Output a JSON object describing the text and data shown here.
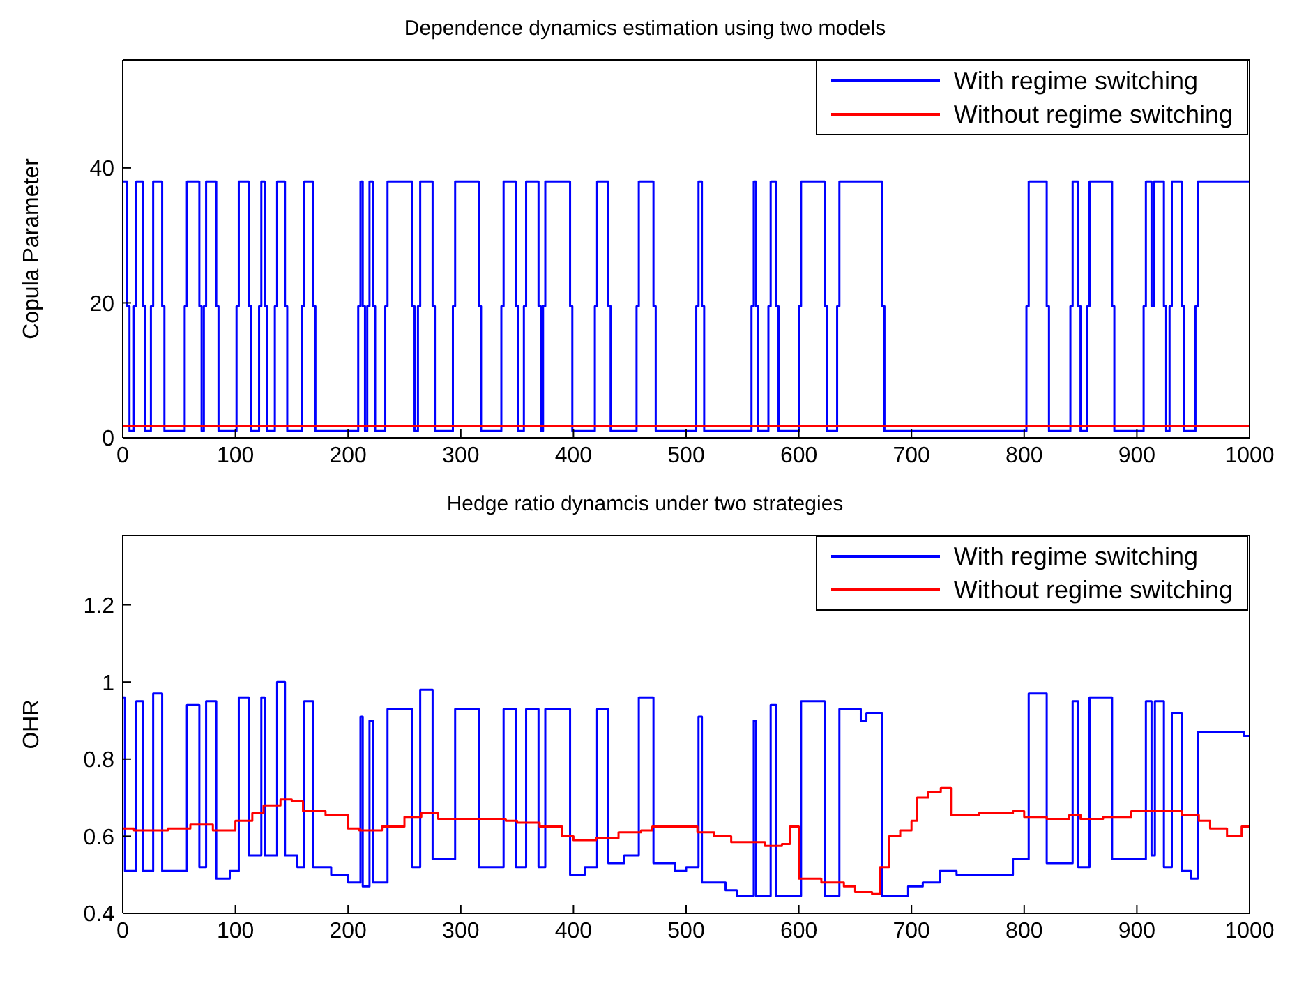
{
  "chart_data": [
    {
      "type": "step",
      "title": "Dependence dynamics estimation using two models",
      "ylabel": "Copula Parameter",
      "xlim": [
        0,
        1000
      ],
      "xticks": [
        0,
        100,
        200,
        300,
        400,
        500,
        600,
        700,
        800,
        900,
        1000
      ],
      "ylim": [
        0,
        56
      ],
      "yticks": [
        0,
        20,
        40
      ],
      "legend": "top right",
      "series": [
        {
          "name": "With regime switching",
          "color": "#0000ff",
          "x": [
            0,
            4,
            6,
            10,
            12,
            18,
            20,
            25,
            27,
            35,
            37,
            55,
            57,
            68,
            70,
            72,
            74,
            83,
            85,
            101,
            103,
            112,
            114,
            121,
            123,
            126,
            128,
            135,
            137,
            144,
            146,
            159,
            161,
            169,
            171,
            209,
            211,
            213,
            215,
            217,
            219,
            222,
            224,
            233,
            235,
            257,
            259,
            262,
            264,
            275,
            277,
            293,
            295,
            316,
            318,
            336,
            338,
            349,
            351,
            356,
            358,
            369,
            371,
            373,
            375,
            397,
            399,
            419,
            421,
            431,
            433,
            456,
            458,
            471,
            473,
            509,
            511,
            514,
            516,
            558,
            560,
            562,
            564,
            573,
            575,
            580,
            582,
            600,
            602,
            623,
            625,
            634,
            636,
            674,
            676,
            802,
            804,
            820,
            822,
            841,
            843,
            848,
            850,
            856,
            858,
            878,
            880,
            906,
            908,
            913,
            915,
            924,
            926,
            929,
            931,
            940,
            942,
            952,
            954,
            1000
          ],
          "values": [
            38,
            19.5,
            1,
            19.5,
            38,
            19.5,
            1,
            19.5,
            38,
            19.5,
            1,
            19.5,
            38,
            19.5,
            1,
            19.5,
            38,
            19.5,
            1,
            19.5,
            38,
            19.5,
            1,
            19.5,
            38,
            19.5,
            1,
            19.5,
            38,
            19.5,
            1,
            19.5,
            38,
            19.5,
            1,
            19.5,
            38,
            19.5,
            1,
            19.5,
            38,
            19.5,
            1,
            19.5,
            38,
            19.5,
            1,
            19.5,
            38,
            19.5,
            1,
            19.5,
            38,
            19.5,
            1,
            19.5,
            38,
            19.5,
            1,
            19.5,
            38,
            19.5,
            1,
            19.5,
            38,
            19.5,
            1,
            19.5,
            38,
            19.5,
            1,
            19.5,
            38,
            19.5,
            1,
            19.5,
            38,
            19.5,
            1,
            19.5,
            38,
            19.5,
            1,
            19.5,
            38,
            19.5,
            1,
            19.5,
            38,
            19.5,
            1,
            19.5,
            38,
            19.5,
            1,
            19.5,
            38,
            19.5,
            1,
            19.5,
            38,
            19.5,
            1,
            19.5,
            38,
            19.5,
            1,
            19.5,
            38,
            19.5,
            38,
            19.5,
            1,
            19.5,
            38,
            19.5,
            1,
            19.5,
            38,
            38
          ]
        },
        {
          "name": "Without regime switching",
          "color": "#ff0000",
          "x": [
            0,
            1000
          ],
          "values": [
            1.7,
            1.7
          ]
        }
      ]
    },
    {
      "type": "step",
      "title": "Hedge ratio dynamcis under two strategies",
      "ylabel": "OHR",
      "xlim": [
        0,
        1000
      ],
      "xticks": [
        0,
        100,
        200,
        300,
        400,
        500,
        600,
        700,
        800,
        900,
        1000
      ],
      "ylim": [
        0.4,
        1.38
      ],
      "yticks": [
        0.4,
        0.6,
        0.8,
        1,
        1.2
      ],
      "legend": "top right",
      "series": [
        {
          "name": "With regime switching",
          "color": "#0000ff",
          "x": [
            0,
            2,
            12,
            18,
            27,
            35,
            57,
            68,
            74,
            83,
            95,
            103,
            112,
            123,
            126,
            137,
            144,
            155,
            161,
            169,
            185,
            200,
            211,
            213,
            219,
            222,
            235,
            257,
            264,
            275,
            295,
            316,
            338,
            349,
            358,
            369,
            375,
            397,
            410,
            421,
            431,
            445,
            458,
            471,
            490,
            500,
            511,
            514,
            535,
            545,
            560,
            562,
            575,
            580,
            602,
            623,
            636,
            655,
            660,
            674,
            697,
            710,
            725,
            740,
            770,
            790,
            804,
            820,
            843,
            848,
            858,
            878,
            908,
            913,
            916,
            924,
            931,
            940,
            948,
            954,
            980,
            995,
            1000
          ],
          "values": [
            0.96,
            0.51,
            0.95,
            0.51,
            0.97,
            0.51,
            0.94,
            0.52,
            0.95,
            0.49,
            0.51,
            0.96,
            0.55,
            0.96,
            0.55,
            1.0,
            0.55,
            0.52,
            0.95,
            0.52,
            0.5,
            0.48,
            0.91,
            0.47,
            0.9,
            0.48,
            0.93,
            0.52,
            0.98,
            0.54,
            0.93,
            0.52,
            0.93,
            0.52,
            0.93,
            0.52,
            0.93,
            0.5,
            0.52,
            0.93,
            0.53,
            0.55,
            0.96,
            0.53,
            0.51,
            0.52,
            0.91,
            0.48,
            0.46,
            0.445,
            0.9,
            0.445,
            0.94,
            0.445,
            0.95,
            0.445,
            0.93,
            0.9,
            0.92,
            0.445,
            0.47,
            0.48,
            0.51,
            0.5,
            0.5,
            0.54,
            0.97,
            0.53,
            0.95,
            0.52,
            0.96,
            0.54,
            0.95,
            0.55,
            0.95,
            0.52,
            0.92,
            0.51,
            0.49,
            0.87,
            0.87,
            0.86,
            0.86
          ]
        },
        {
          "name": "Without regime switching",
          "color": "#ff0000",
          "x": [
            0,
            10,
            40,
            60,
            80,
            100,
            115,
            125,
            140,
            150,
            160,
            180,
            200,
            210,
            230,
            250,
            265,
            280,
            320,
            340,
            350,
            370,
            390,
            400,
            420,
            440,
            460,
            470,
            510,
            525,
            540,
            570,
            585,
            592,
            600,
            620,
            640,
            650,
            665,
            672,
            680,
            690,
            700,
            705,
            715,
            726,
            735,
            760,
            790,
            800,
            820,
            840,
            850,
            870,
            895,
            930,
            940,
            955,
            965,
            980,
            993,
            1000
          ],
          "values": [
            0.62,
            0.615,
            0.62,
            0.63,
            0.615,
            0.64,
            0.66,
            0.68,
            0.695,
            0.69,
            0.665,
            0.655,
            0.62,
            0.615,
            0.625,
            0.65,
            0.66,
            0.645,
            0.645,
            0.64,
            0.635,
            0.625,
            0.6,
            0.59,
            0.595,
            0.61,
            0.615,
            0.625,
            0.61,
            0.6,
            0.585,
            0.575,
            0.58,
            0.625,
            0.49,
            0.48,
            0.47,
            0.455,
            0.45,
            0.52,
            0.6,
            0.615,
            0.64,
            0.7,
            0.715,
            0.725,
            0.655,
            0.66,
            0.665,
            0.65,
            0.645,
            0.655,
            0.645,
            0.65,
            0.665,
            0.665,
            0.655,
            0.64,
            0.62,
            0.6,
            0.625,
            0.625
          ]
        }
      ]
    }
  ]
}
